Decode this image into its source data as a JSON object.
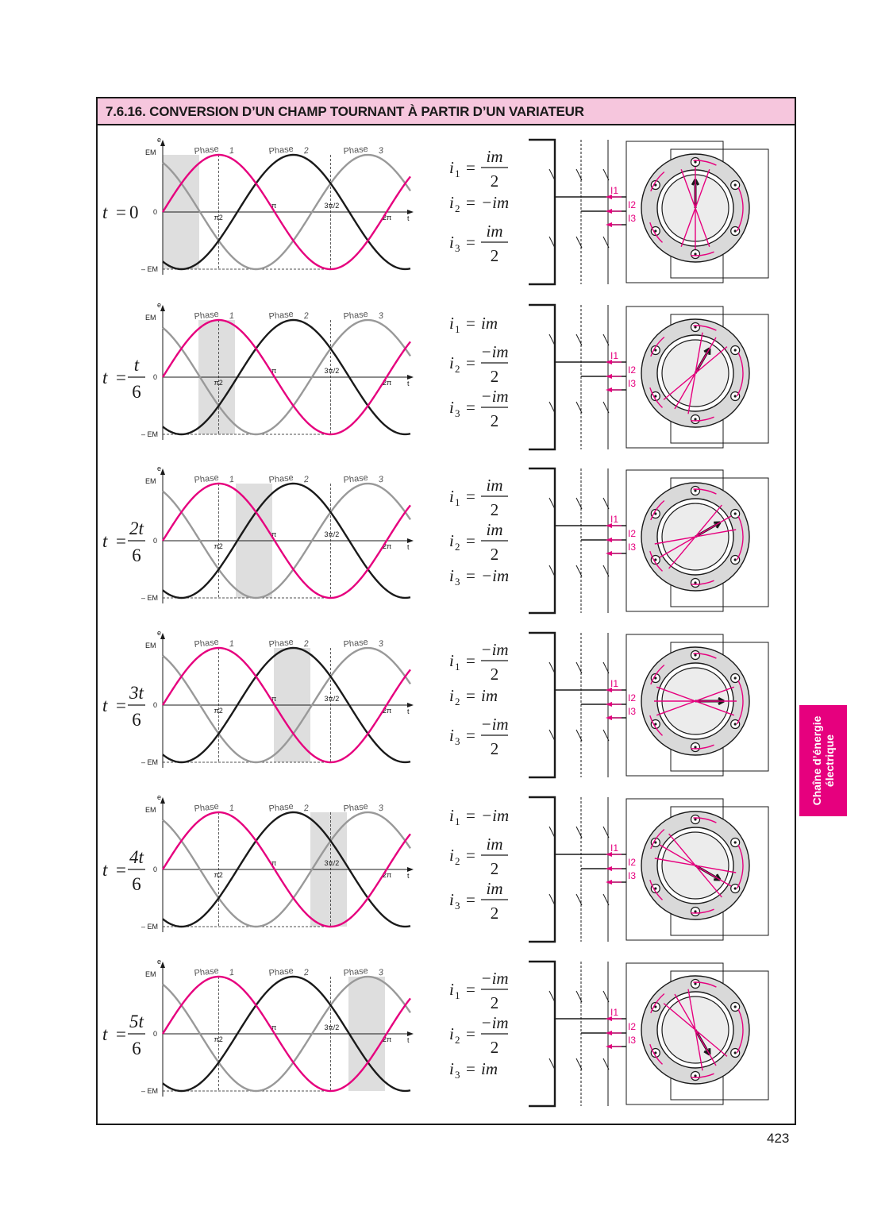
{
  "section": {
    "title": "7.6.16. CONVERSION D’UN CHAMP TOURNANT À PARTIR D’UN VARIATEUR"
  },
  "side_tab": {
    "line1": "Chaîne d’énergie",
    "line2": "électrique"
  },
  "page_number": "423",
  "axis": {
    "y_label": "e",
    "y_max": "EM",
    "y_zero": "0",
    "y_min": "– EM",
    "x_label": "t",
    "x_ticks": [
      "π2",
      "π",
      "3π/2",
      "2π"
    ]
  },
  "phases": [
    {
      "name": "Phase",
      "num": "1"
    },
    {
      "name": "Phase",
      "num": "2"
    },
    {
      "name": "Phase",
      "num": "3"
    }
  ],
  "current_labels": [
    "I1",
    "I2",
    "I3"
  ],
  "colors": {
    "accent": "#e6007e",
    "title_bg": "#f6c6dd",
    "phase1": "#e6007e",
    "phase2": "#1a1a1a",
    "phase3": "#999999",
    "shade": "#dedede"
  },
  "chart_data": [
    {
      "type": "line",
      "x": [
        "0",
        "π2",
        "π",
        "3π/2",
        "2π"
      ],
      "ylim": [
        "– EM",
        "EM"
      ],
      "series": [
        {
          "name": "Phase 1"
        },
        {
          "name": "Phase 2"
        },
        {
          "name": "Phase 3"
        }
      ],
      "highlight_sector": 1
    },
    {
      "type": "line",
      "highlight_sector": 2
    },
    {
      "type": "line",
      "highlight_sector": 3
    },
    {
      "type": "line",
      "highlight_sector": 4
    },
    {
      "type": "line",
      "highlight_sector": 5
    },
    {
      "type": "line",
      "highlight_sector": 6
    }
  ],
  "rows": [
    {
      "t": {
        "lhs": "t",
        "eq": "=",
        "value": "0",
        "num": "",
        "den": ""
      },
      "currents": [
        {
          "i": "i",
          "sub": "1",
          "eq": "=",
          "kind": "frac",
          "num": "im",
          "den": "2"
        },
        {
          "i": "i",
          "sub": "2",
          "eq": "=",
          "kind": "inline",
          "val": "−im"
        },
        {
          "i": "i",
          "sub": "3",
          "eq": "=",
          "kind": "frac",
          "num": "im",
          "den": "2"
        }
      ]
    },
    {
      "t": {
        "lhs": "t",
        "eq": "=",
        "value": "",
        "num": "t",
        "den": "6"
      },
      "currents": [
        {
          "i": "i",
          "sub": "1",
          "eq": "=",
          "kind": "inline",
          "val": "im"
        },
        {
          "i": "i",
          "sub": "2",
          "eq": "=",
          "kind": "frac",
          "num": "−im",
          "den": "2"
        },
        {
          "i": "i",
          "sub": "3",
          "eq": "=",
          "kind": "frac",
          "num": "−im",
          "den": "2"
        }
      ]
    },
    {
      "t": {
        "lhs": "t",
        "eq": "=",
        "value": "",
        "num": "2t",
        "den": "6"
      },
      "currents": [
        {
          "i": "i",
          "sub": "1",
          "eq": "=",
          "kind": "frac",
          "num": "im",
          "den": "2"
        },
        {
          "i": "i",
          "sub": "2",
          "eq": "=",
          "kind": "frac",
          "num": "im",
          "den": "2"
        },
        {
          "i": "i",
          "sub": "3",
          "eq": "=",
          "kind": "inline",
          "val": "−im"
        }
      ]
    },
    {
      "t": {
        "lhs": "t",
        "eq": "=",
        "value": "",
        "num": "3t",
        "den": "6"
      },
      "currents": [
        {
          "i": "i",
          "sub": "1",
          "eq": "=",
          "kind": "frac",
          "num": "−im",
          "den": "2"
        },
        {
          "i": "i",
          "sub": "2",
          "eq": "=",
          "kind": "inline",
          "val": "im"
        },
        {
          "i": "i",
          "sub": "3",
          "eq": "=",
          "kind": "frac",
          "num": "−im",
          "den": "2"
        }
      ]
    },
    {
      "t": {
        "lhs": "t",
        "eq": "=",
        "value": "",
        "num": "4t",
        "den": "6"
      },
      "currents": [
        {
          "i": "i",
          "sub": "1",
          "eq": "=",
          "kind": "inline",
          "val": "−im"
        },
        {
          "i": "i",
          "sub": "2",
          "eq": "=",
          "kind": "frac",
          "num": "im",
          "den": "2"
        },
        {
          "i": "i",
          "sub": "3",
          "eq": "=",
          "kind": "frac",
          "num": "im",
          "den": "2"
        }
      ]
    },
    {
      "t": {
        "lhs": "t",
        "eq": "=",
        "value": "",
        "num": "5t",
        "den": "6"
      },
      "currents": [
        {
          "i": "i",
          "sub": "1",
          "eq": "=",
          "kind": "frac",
          "num": "−im",
          "den": "2"
        },
        {
          "i": "i",
          "sub": "2",
          "eq": "=",
          "kind": "frac",
          "num": "−im",
          "den": "2"
        },
        {
          "i": "i",
          "sub": "3",
          "eq": "=",
          "kind": "inline",
          "val": "im"
        }
      ]
    }
  ]
}
